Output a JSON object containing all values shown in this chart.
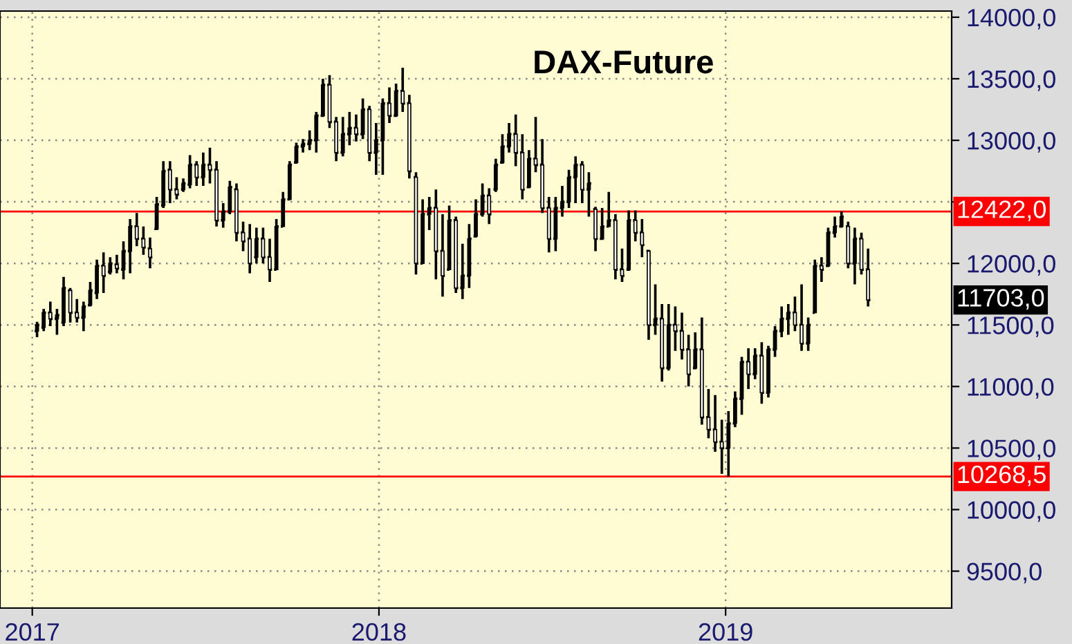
{
  "chart_data": {
    "type": "candlestick",
    "title": "DAX-Future",
    "color": "#000000",
    "x": [
      "2017-01-06",
      "2017-01-13",
      "2017-01-20",
      "2017-01-27",
      "2017-02-03",
      "2017-02-10",
      "2017-02-17",
      "2017-02-24",
      "2017-03-03",
      "2017-03-10",
      "2017-03-17",
      "2017-03-24",
      "2017-03-31",
      "2017-04-07",
      "2017-04-14",
      "2017-04-21",
      "2017-04-28",
      "2017-05-05",
      "2017-05-12",
      "2017-05-19",
      "2017-05-26",
      "2017-06-02",
      "2017-06-09",
      "2017-06-16",
      "2017-06-23",
      "2017-06-30",
      "2017-07-07",
      "2017-07-14",
      "2017-07-21",
      "2017-07-28",
      "2017-08-04",
      "2017-08-11",
      "2017-08-18",
      "2017-08-25",
      "2017-09-01",
      "2017-09-08",
      "2017-09-15",
      "2017-09-22",
      "2017-09-29",
      "2017-10-06",
      "2017-10-13",
      "2017-10-20",
      "2017-10-27",
      "2017-11-03",
      "2017-11-10",
      "2017-11-17",
      "2017-11-24",
      "2017-12-01",
      "2017-12-08",
      "2017-12-15",
      "2017-12-22",
      "2017-12-29",
      "2018-01-05",
      "2018-01-12",
      "2018-01-19",
      "2018-01-26",
      "2018-02-02",
      "2018-02-09",
      "2018-02-16",
      "2018-02-23",
      "2018-03-02",
      "2018-03-09",
      "2018-03-16",
      "2018-03-23",
      "2018-03-30",
      "2018-04-06",
      "2018-04-13",
      "2018-04-20",
      "2018-04-27",
      "2018-05-04",
      "2018-05-11",
      "2018-05-18",
      "2018-05-25",
      "2018-06-01",
      "2018-06-08",
      "2018-06-15",
      "2018-06-22",
      "2018-06-29",
      "2018-07-06",
      "2018-07-13",
      "2018-07-20",
      "2018-07-27",
      "2018-08-03",
      "2018-08-10",
      "2018-08-17",
      "2018-08-24",
      "2018-08-31",
      "2018-09-07",
      "2018-09-14",
      "2018-09-21",
      "2018-09-28",
      "2018-10-05",
      "2018-10-12",
      "2018-10-19",
      "2018-10-26",
      "2018-11-02",
      "2018-11-09",
      "2018-11-16",
      "2018-11-23",
      "2018-11-30",
      "2018-12-07",
      "2018-12-14",
      "2018-12-21",
      "2018-12-28",
      "2019-01-04",
      "2019-01-11",
      "2019-01-18",
      "2019-01-25",
      "2019-02-01",
      "2019-02-08",
      "2019-02-15",
      "2019-02-22",
      "2019-03-01",
      "2019-03-08",
      "2019-03-15",
      "2019-03-22",
      "2019-03-29",
      "2019-04-05",
      "2019-04-12",
      "2019-04-19",
      "2019-04-26",
      "2019-05-03",
      "2019-05-10",
      "2019-05-17",
      "2019-05-24",
      "2019-05-31"
    ],
    "ohlc": [
      [
        11450,
        11525,
        11400,
        11500
      ],
      [
        11480,
        11630,
        11450,
        11600
      ],
      [
        11600,
        11690,
        11490,
        11550
      ],
      [
        11550,
        11630,
        11420,
        11580
      ],
      [
        11520,
        11890,
        11490,
        11800
      ],
      [
        11780,
        11800,
        11520,
        11600
      ],
      [
        11600,
        11710,
        11520,
        11560
      ],
      [
        11560,
        11690,
        11450,
        11650
      ],
      [
        11660,
        11850,
        11650,
        11780
      ],
      [
        11760,
        12030,
        11710,
        11980
      ],
      [
        11980,
        12090,
        11760,
        11900
      ],
      [
        11930,
        12050,
        11910,
        12000
      ],
      [
        11990,
        12070,
        11920,
        11960
      ],
      [
        11950,
        12180,
        11870,
        12100
      ],
      [
        12100,
        12360,
        11920,
        12300
      ],
      [
        12300,
        12410,
        12140,
        12200
      ],
      [
        12200,
        12300,
        12070,
        12130
      ],
      [
        12120,
        12210,
        11960,
        12050
      ],
      [
        12280,
        12540,
        12270,
        12480
      ],
      [
        12470,
        12830,
        12450,
        12750
      ],
      [
        12760,
        12830,
        12490,
        12600
      ],
      [
        12600,
        12700,
        12520,
        12560
      ],
      [
        12600,
        12690,
        12580,
        12650
      ],
      [
        12640,
        12880,
        12610,
        12800
      ],
      [
        12800,
        12830,
        12630,
        12700
      ],
      [
        12700,
        12900,
        12630,
        12800
      ],
      [
        12800,
        12940,
        12650,
        12760
      ],
      [
        12760,
        12830,
        12300,
        12350
      ],
      [
        12350,
        12490,
        12290,
        12420
      ],
      [
        12420,
        12670,
        12400,
        12620
      ],
      [
        12600,
        12650,
        12180,
        12250
      ],
      [
        12250,
        12340,
        12100,
        12180
      ],
      [
        12200,
        12320,
        11920,
        12000
      ],
      [
        12050,
        12290,
        12000,
        12200
      ],
      [
        12200,
        12290,
        12000,
        12050
      ],
      [
        12050,
        12200,
        11850,
        11950
      ],
      [
        11950,
        12360,
        11950,
        12300
      ],
      [
        12300,
        12580,
        12300,
        12520
      ],
      [
        12520,
        12830,
        12520,
        12800
      ],
      [
        12820,
        12980,
        12810,
        12950
      ],
      [
        12950,
        13010,
        12900,
        12970
      ],
      [
        12970,
        13080,
        12920,
        13000
      ],
      [
        13000,
        13230,
        12900,
        13200
      ],
      [
        13200,
        13500,
        13190,
        13450
      ],
      [
        13450,
        13530,
        13100,
        13150
      ],
      [
        13150,
        13190,
        12830,
        12900
      ],
      [
        12900,
        13190,
        12870,
        13050
      ],
      [
        13050,
        13230,
        12960,
        13100
      ],
      [
        13100,
        13210,
        12990,
        13050
      ],
      [
        13050,
        13340,
        13010,
        13250
      ],
      [
        13250,
        13280,
        12830,
        12900
      ],
      [
        12900,
        13140,
        12720,
        13000
      ],
      [
        13000,
        13340,
        12720,
        13300
      ],
      [
        13300,
        13430,
        13140,
        13200
      ],
      [
        13200,
        13460,
        13190,
        13400
      ],
      [
        13400,
        13590,
        13230,
        13300
      ],
      [
        13300,
        13370,
        12690,
        12750
      ],
      [
        12700,
        12740,
        11910,
        12000
      ],
      [
        12000,
        12520,
        12000,
        12400
      ],
      [
        12400,
        12540,
        12270,
        12450
      ],
      [
        12450,
        12600,
        11870,
        12100
      ],
      [
        12100,
        12400,
        11730,
        11900
      ],
      [
        11950,
        12470,
        11950,
        12350
      ],
      [
        12350,
        12380,
        11760,
        11800
      ],
      [
        11800,
        12160,
        11710,
        11900
      ],
      [
        11900,
        12320,
        11800,
        12200
      ],
      [
        12220,
        12520,
        12210,
        12400
      ],
      [
        12400,
        12650,
        12380,
        12550
      ],
      [
        12550,
        12610,
        12320,
        12400
      ],
      [
        12600,
        12850,
        12580,
        12800
      ],
      [
        12820,
        13050,
        12810,
        12950
      ],
      [
        12950,
        13140,
        12900,
        13050
      ],
      [
        13050,
        13210,
        12790,
        12900
      ],
      [
        12900,
        13050,
        12520,
        12600
      ],
      [
        12620,
        12920,
        12610,
        12850
      ],
      [
        12850,
        13190,
        12740,
        12800
      ],
      [
        12800,
        13010,
        12410,
        12450
      ],
      [
        12450,
        12540,
        12090,
        12200
      ],
      [
        12200,
        12540,
        12100,
        12450
      ],
      [
        12450,
        12630,
        12380,
        12500
      ],
      [
        12500,
        12760,
        12450,
        12700
      ],
      [
        12700,
        12870,
        12490,
        12800
      ],
      [
        12800,
        12830,
        12490,
        12600
      ],
      [
        12600,
        12740,
        12380,
        12650
      ],
      [
        12440,
        12460,
        12100,
        12200
      ],
      [
        12200,
        12450,
        12190,
        12300
      ],
      [
        12300,
        12580,
        12300,
        12350
      ],
      [
        12350,
        12400,
        11870,
        11950
      ],
      [
        11950,
        12120,
        11850,
        11900
      ],
      [
        11950,
        12430,
        11940,
        12350
      ],
      [
        12350,
        12430,
        12180,
        12250
      ],
      [
        12250,
        12360,
        12050,
        12150
      ],
      [
        12100,
        12110,
        11380,
        11500
      ],
      [
        11500,
        11830,
        11420,
        11550
      ],
      [
        11550,
        11670,
        11040,
        11150
      ],
      [
        11150,
        11670,
        11130,
        11500
      ],
      [
        11500,
        11650,
        11290,
        11450
      ],
      [
        11450,
        11600,
        11220,
        11300
      ],
      [
        11300,
        11420,
        11000,
        11100
      ],
      [
        11150,
        11440,
        11140,
        11300
      ],
      [
        11300,
        11560,
        10690,
        10750
      ],
      [
        10750,
        10980,
        10580,
        10650
      ],
      [
        10650,
        10930,
        10470,
        10550
      ],
      [
        10550,
        10730,
        10290,
        10500
      ],
      [
        10500,
        10800,
        10268.5,
        10700
      ],
      [
        10700,
        10960,
        10670,
        10900
      ],
      [
        10900,
        11240,
        10770,
        11200
      ],
      [
        11200,
        11310,
        10980,
        11100
      ],
      [
        11100,
        11310,
        11060,
        11250
      ],
      [
        11250,
        11360,
        10860,
        10950
      ],
      [
        10950,
        11330,
        10910,
        11300
      ],
      [
        11300,
        11490,
        11240,
        11450
      ],
      [
        11450,
        11650,
        11400,
        11550
      ],
      [
        11550,
        11670,
        11420,
        11600
      ],
      [
        11600,
        11730,
        11450,
        11500
      ],
      [
        11500,
        11830,
        11290,
        11350
      ],
      [
        11350,
        11560,
        11290,
        11500
      ],
      [
        11600,
        12030,
        11600,
        11980
      ],
      [
        11980,
        12050,
        11850,
        11950
      ],
      [
        11980,
        12290,
        11970,
        12250
      ],
      [
        12250,
        12380,
        12210,
        12300
      ],
      [
        12300,
        12422,
        12290,
        12380
      ],
      [
        12300,
        12340,
        11960,
        12000
      ],
      [
        12000,
        12290,
        11830,
        12200
      ],
      [
        12200,
        12250,
        11910,
        11950
      ],
      [
        11950,
        12120,
        11650,
        11703
      ]
    ],
    "xlim": [
      "2016-11-28",
      "2019-08-27"
    ],
    "xticks": [
      {
        "value": "2017-01-01",
        "label": "2017"
      },
      {
        "value": "2018-01-01",
        "label": "2018"
      },
      {
        "value": "2019-01-01",
        "label": "2019"
      }
    ],
    "ylim": [
      9200,
      14050
    ],
    "yticks": [
      {
        "value": 9500,
        "label": "9500,0"
      },
      {
        "value": 10000,
        "label": "10000,0"
      },
      {
        "value": 10500,
        "label": "10500,0"
      },
      {
        "value": 11000,
        "label": "11000,0"
      },
      {
        "value": 11500,
        "label": "11500,0"
      },
      {
        "value": 12000,
        "label": "12000,0"
      },
      {
        "value": 12500,
        "label": null
      },
      {
        "value": 13000,
        "label": "13000,0"
      },
      {
        "value": 13500,
        "label": "13500,0"
      },
      {
        "value": 14000,
        "label": "14000,0"
      }
    ],
    "ref_lines": [
      {
        "axis": "y",
        "value": 12422,
        "label": "12422,0",
        "color": "#ff0000"
      },
      {
        "axis": "y",
        "value": 10268.5,
        "label": "10268,5",
        "color": "#ff0000"
      }
    ],
    "annotations": [
      "11703,0"
    ],
    "grid": true
  }
}
